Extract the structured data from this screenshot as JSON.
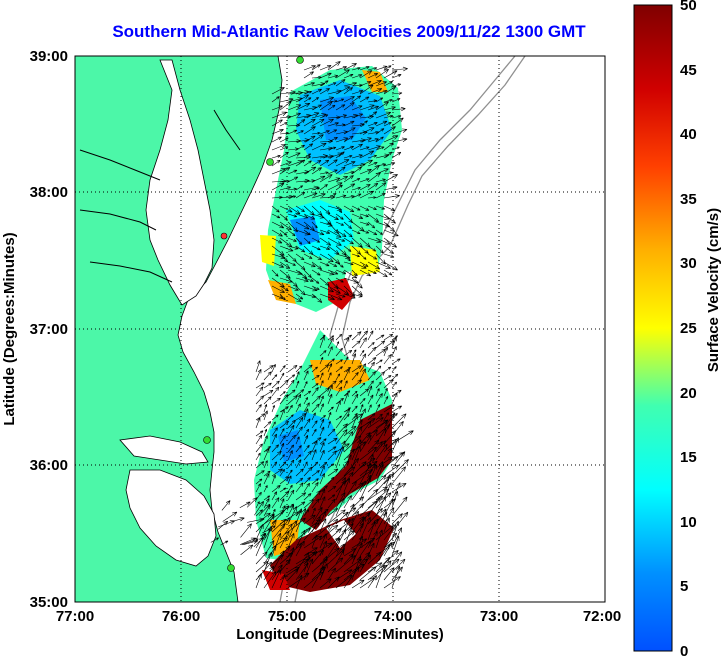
{
  "title": "Southern Mid-Atlantic Raw Velocities 2009/11/22 1300 GMT",
  "x_axis": {
    "label": "Longitude (Degrees:Minutes)",
    "ticks": [
      "77:00",
      "76:00",
      "75:00",
      "74:00",
      "73:00",
      "72:00"
    ]
  },
  "y_axis": {
    "label": "Latitude (Degrees:Minutes)",
    "ticks": [
      "39:00",
      "38:00",
      "37:00",
      "36:00",
      "35:00"
    ]
  },
  "colorbar": {
    "label": "Surface Velocity (cm/s)",
    "ticks": [
      "50",
      "45",
      "40",
      "35",
      "30",
      "25",
      "20",
      "15",
      "10",
      "5",
      "0"
    ],
    "range": [
      0,
      50
    ],
    "colormap": "jet"
  },
  "colors": {
    "land": "#4cf7a8",
    "water": "#ffffff",
    "coastline": "#000000",
    "bathymetry": "#909090",
    "title": "#0000ff",
    "station_marker": "#33dd33",
    "station_marker_alt": "#ff3333"
  }
}
